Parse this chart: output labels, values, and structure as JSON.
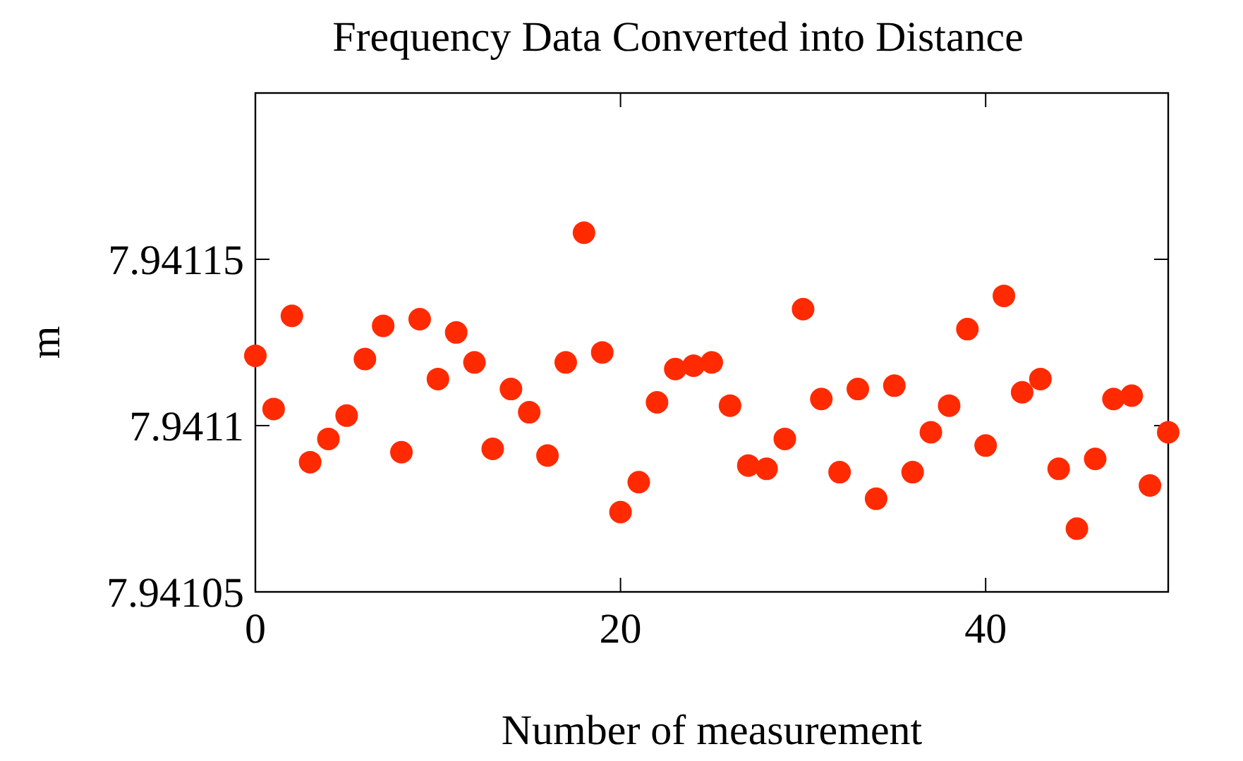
{
  "chart_data": {
    "type": "scatter",
    "title": "Frequency Data Converted into Distance",
    "xlabel": "Number of measurement",
    "ylabel": "m",
    "x": [
      0,
      1,
      2,
      3,
      4,
      5,
      6,
      7,
      8,
      9,
      10,
      11,
      12,
      13,
      14,
      15,
      16,
      17,
      18,
      19,
      20,
      21,
      22,
      23,
      24,
      25,
      26,
      27,
      28,
      29,
      30,
      31,
      32,
      33,
      34,
      35,
      36,
      37,
      38,
      39,
      40,
      41,
      42,
      43,
      44,
      45,
      46,
      47,
      48,
      49,
      50
    ],
    "series": [
      {
        "color": "#ff2a00",
        "values": [
          7.941121,
          7.941105,
          7.941133,
          7.941089,
          7.941096,
          7.941103,
          7.94112,
          7.94113,
          7.941092,
          7.941132,
          7.941114,
          7.941128,
          7.941119,
          7.941093,
          7.941111,
          7.941104,
          7.941091,
          7.941119,
          7.941158,
          7.941122,
          7.941074,
          7.941083,
          7.941107,
          7.941117,
          7.941118,
          7.941119,
          7.941106,
          7.941088,
          7.941087,
          7.941096,
          7.941135,
          7.941108,
          7.941086,
          7.941111,
          7.941078,
          7.941112,
          7.941086,
          7.941098,
          7.941106,
          7.941129,
          7.941094,
          7.941139,
          7.94111,
          7.941114,
          7.941087,
          7.941069,
          7.94109,
          7.941108,
          7.941109,
          7.941082,
          7.941098
        ]
      }
    ],
    "xlim": [
      0,
      50
    ],
    "xticks": [
      0,
      20,
      40
    ],
    "ylim": [
      7.94105,
      7.9412
    ],
    "yticks": [
      7.94105,
      7.9411,
      7.94115
    ],
    "marker": "circle",
    "grid": false
  }
}
